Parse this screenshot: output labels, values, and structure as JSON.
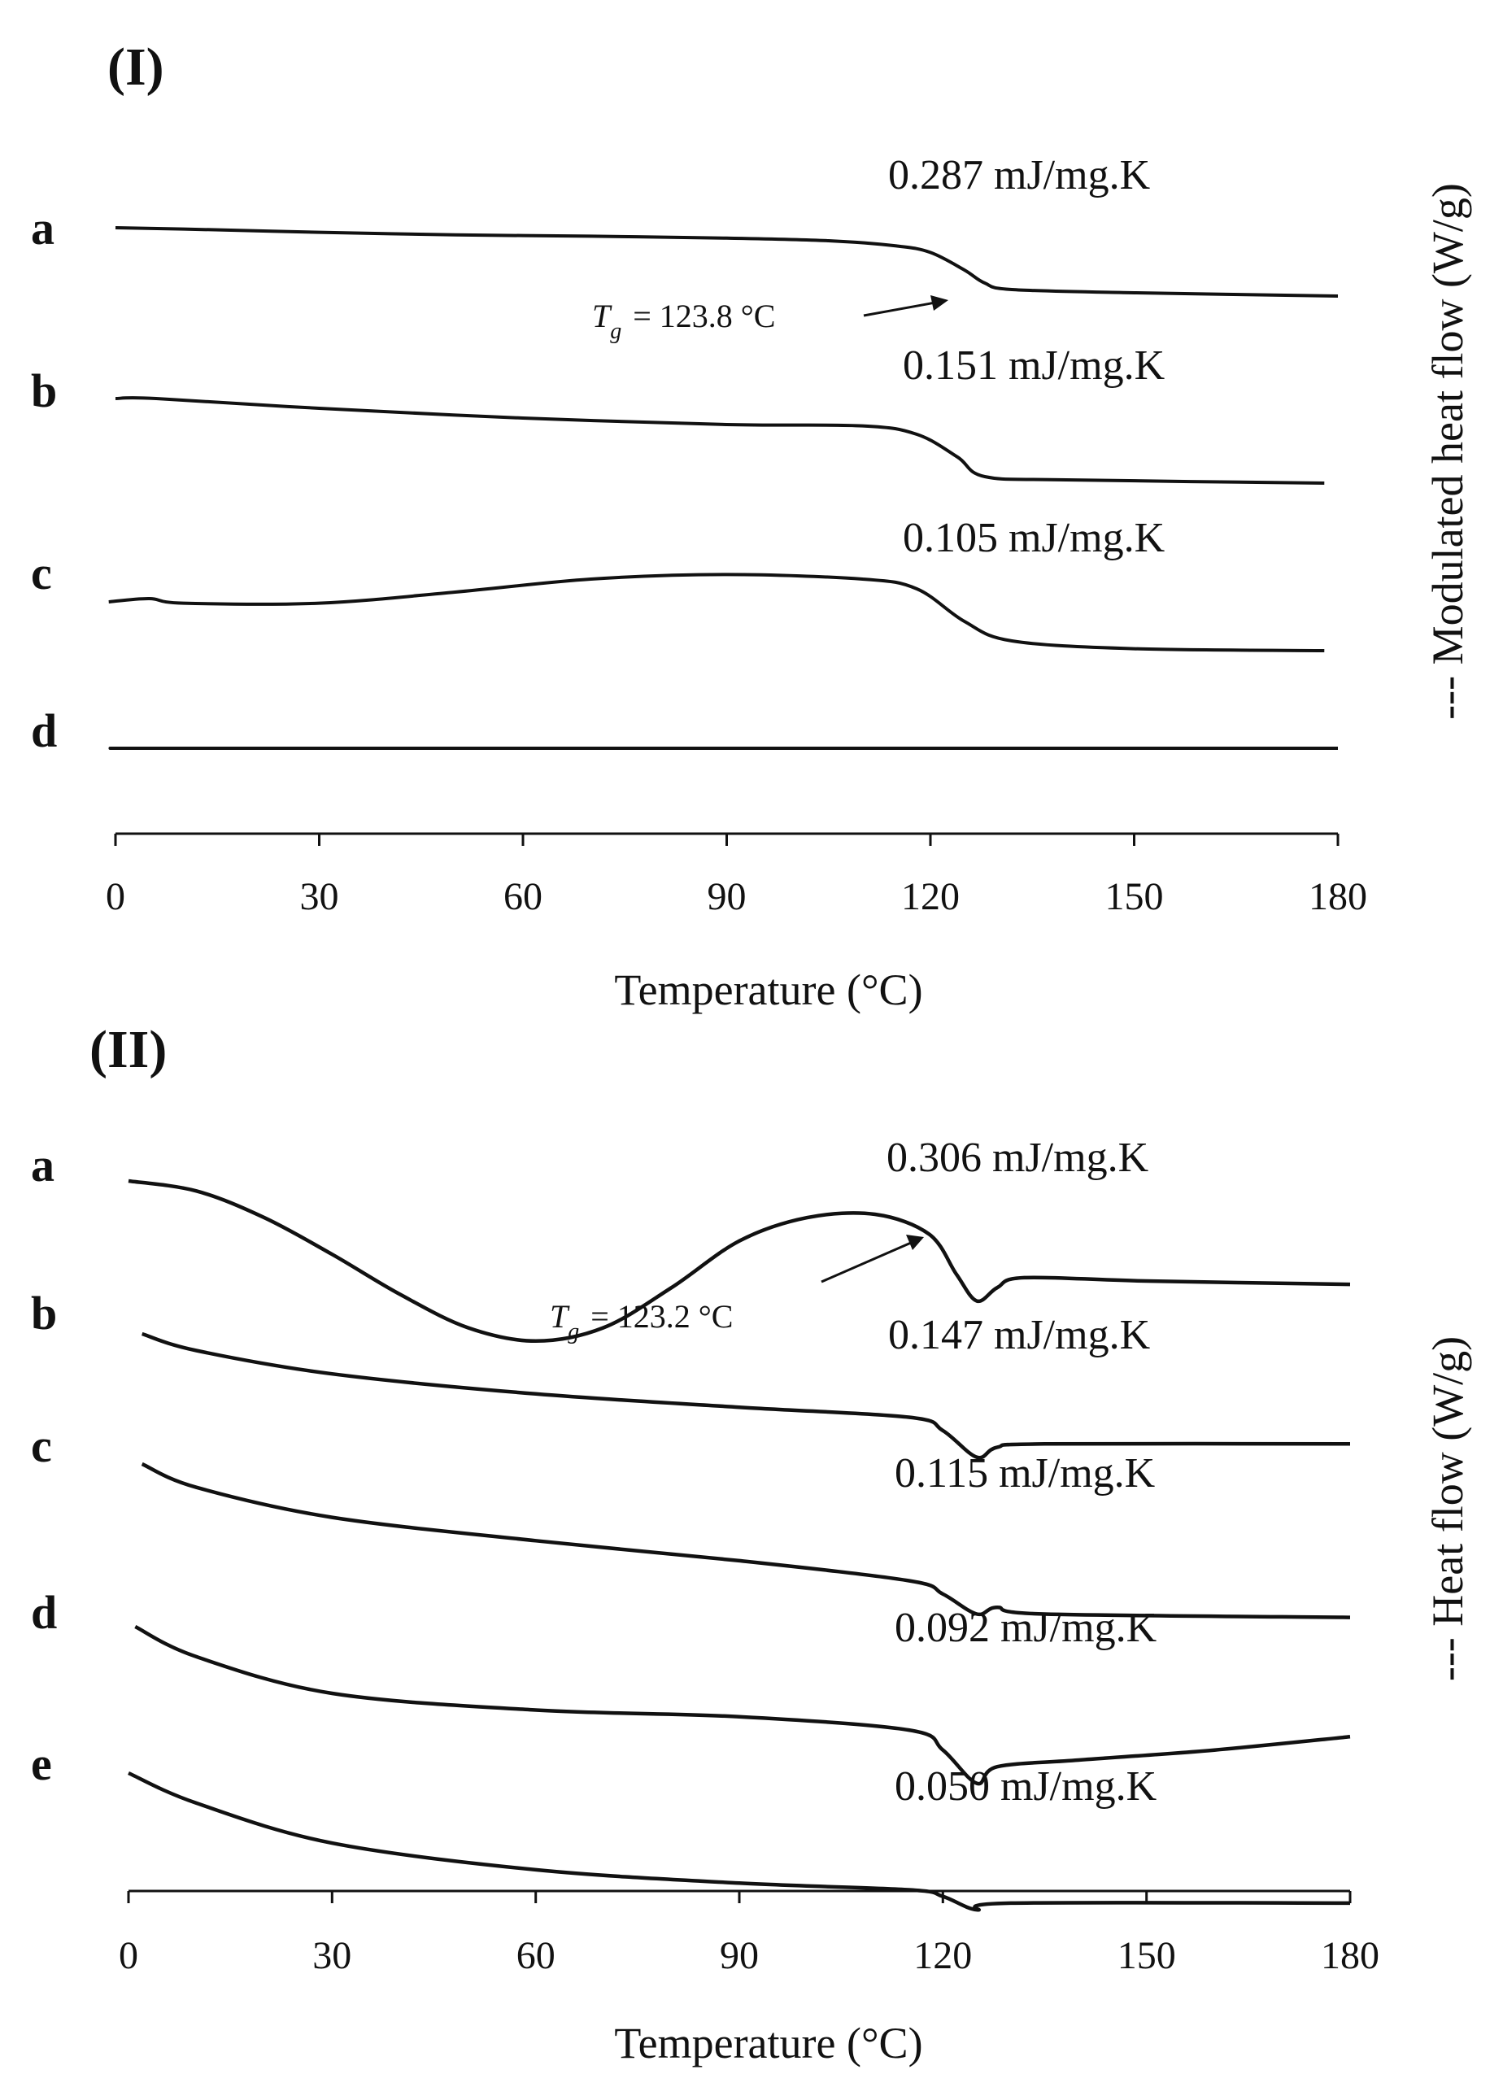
{
  "colors": {
    "line": "#111111",
    "background": "#ffffff"
  },
  "chart_data": [
    {
      "type": "line",
      "panel_label": "(I)",
      "xlabel": "Temperature (°C)",
      "ylabel": "--- Modulated heat flow (W/g)",
      "xlim": [
        0,
        180
      ],
      "x_ticks": [
        0,
        30,
        60,
        90,
        120,
        150,
        180
      ],
      "grid": false,
      "series": [
        {
          "name": "a",
          "heat_capacity_step": "0.287 mJ/mg.K",
          "curve": [
            [
              0,
              0
            ],
            [
              10,
              -0.02
            ],
            [
              30,
              -0.07
            ],
            [
              50,
              -0.11
            ],
            [
              70,
              -0.13
            ],
            [
              90,
              -0.16
            ],
            [
              105,
              -0.2
            ],
            [
              115,
              -0.28
            ],
            [
              120,
              -0.38
            ],
            [
              125,
              -0.65
            ],
            [
              128,
              -0.85
            ],
            [
              132,
              -0.95
            ],
            [
              150,
              -1.0
            ],
            [
              180,
              -1.05
            ]
          ]
        },
        {
          "name": "b",
          "heat_capacity_step": "0.151 mJ/mg.K",
          "curve": [
            [
              0,
              0
            ],
            [
              6,
              0.0
            ],
            [
              30,
              -0.15
            ],
            [
              60,
              -0.3
            ],
            [
              90,
              -0.4
            ],
            [
              110,
              -0.42
            ],
            [
              118,
              -0.55
            ],
            [
              124,
              -0.9
            ],
            [
              128,
              -1.2
            ],
            [
              140,
              -1.25
            ],
            [
              178,
              -1.3
            ]
          ]
        },
        {
          "name": "c",
          "heat_capacity_step": "0.105 mJ/mg.K",
          "curve": [
            [
              -1,
              0
            ],
            [
              5,
              0.05
            ],
            [
              10,
              -0.02
            ],
            [
              30,
              -0.02
            ],
            [
              50,
              0.15
            ],
            [
              70,
              0.35
            ],
            [
              90,
              0.42
            ],
            [
              110,
              0.35
            ],
            [
              118,
              0.2
            ],
            [
              125,
              -0.3
            ],
            [
              132,
              -0.6
            ],
            [
              150,
              -0.72
            ],
            [
              178,
              -0.75
            ]
          ]
        },
        {
          "name": "d",
          "heat_capacity_step": "",
          "curve": [
            [
              0,
              0
            ],
            [
              2,
              0
            ],
            [
              30,
              0
            ],
            [
              60,
              0
            ],
            [
              90,
              0
            ],
            [
              120,
              0
            ],
            [
              150,
              0
            ],
            [
              180,
              0
            ]
          ]
        }
      ],
      "annotations": [
        {
          "text_T": "T",
          "text_sub": "g",
          "text_value": "= 123.8 °C",
          "points_to": [
            123.8,
            "a"
          ]
        }
      ]
    },
    {
      "type": "line",
      "panel_label": "(II)",
      "xlabel": "Temperature (°C)",
      "ylabel": "--- Heat flow (W/g)",
      "xlim": [
        0,
        180
      ],
      "x_ticks": [
        0,
        30,
        60,
        90,
        120,
        150,
        180
      ],
      "grid": false,
      "series": [
        {
          "name": "a",
          "heat_capacity_step": "0.306 mJ/mg.K",
          "curve": [
            [
              0,
              0
            ],
            [
              10,
              -0.15
            ],
            [
              20,
              -0.55
            ],
            [
              30,
              -1.1
            ],
            [
              40,
              -1.7
            ],
            [
              50,
              -2.2
            ],
            [
              60,
              -2.4
            ],
            [
              70,
              -2.2
            ],
            [
              80,
              -1.6
            ],
            [
              90,
              -0.9
            ],
            [
              100,
              -0.55
            ],
            [
              110,
              -0.5
            ],
            [
              118,
              -0.8
            ],
            [
              122,
              -1.4
            ],
            [
              125,
              -1.8
            ],
            [
              128,
              -1.6
            ],
            [
              132,
              -1.45
            ],
            [
              150,
              -1.5
            ],
            [
              180,
              -1.55
            ]
          ]
        },
        {
          "name": "b",
          "heat_capacity_step": "0.147 mJ/mg.K",
          "curve": [
            [
              2,
              0
            ],
            [
              10,
              -0.25
            ],
            [
              30,
              -0.6
            ],
            [
              60,
              -0.9
            ],
            [
              90,
              -1.1
            ],
            [
              115,
              -1.25
            ],
            [
              120,
              -1.45
            ],
            [
              125,
              -1.85
            ],
            [
              128,
              -1.7
            ],
            [
              135,
              -1.65
            ],
            [
              180,
              -1.65
            ]
          ]
        },
        {
          "name": "c",
          "heat_capacity_step": "0.115 mJ/mg.K",
          "curve": [
            [
              2,
              0
            ],
            [
              10,
              -0.35
            ],
            [
              30,
              -0.8
            ],
            [
              60,
              -1.15
            ],
            [
              90,
              -1.45
            ],
            [
              115,
              -1.75
            ],
            [
              120,
              -1.95
            ],
            [
              125,
              -2.25
            ],
            [
              128,
              -2.15
            ],
            [
              135,
              -2.25
            ],
            [
              180,
              -2.3
            ]
          ]
        },
        {
          "name": "d",
          "heat_capacity_step": "0.092 mJ/mg.K",
          "curve": [
            [
              1,
              0
            ],
            [
              10,
              -0.45
            ],
            [
              30,
              -1.0
            ],
            [
              60,
              -1.25
            ],
            [
              90,
              -1.35
            ],
            [
              115,
              -1.55
            ],
            [
              120,
              -1.85
            ],
            [
              125,
              -2.35
            ],
            [
              128,
              -2.1
            ],
            [
              140,
              -2.0
            ],
            [
              160,
              -1.85
            ],
            [
              180,
              -1.65
            ]
          ]
        },
        {
          "name": "e",
          "heat_capacity_step": "0.050 mJ/mg.K",
          "curve": [
            [
              0,
              0
            ],
            [
              10,
              -0.45
            ],
            [
              30,
              -1.05
            ],
            [
              60,
              -1.45
            ],
            [
              90,
              -1.65
            ],
            [
              115,
              -1.75
            ],
            [
              120,
              -1.85
            ],
            [
              125,
              -2.05
            ],
            [
              130,
              -1.95
            ],
            [
              180,
              -1.95
            ]
          ]
        }
      ],
      "annotations": [
        {
          "text_T": "T",
          "text_sub": "g",
          "text_value": "= 123.2 °C",
          "points_to": [
            123.2,
            "a"
          ]
        }
      ]
    }
  ]
}
